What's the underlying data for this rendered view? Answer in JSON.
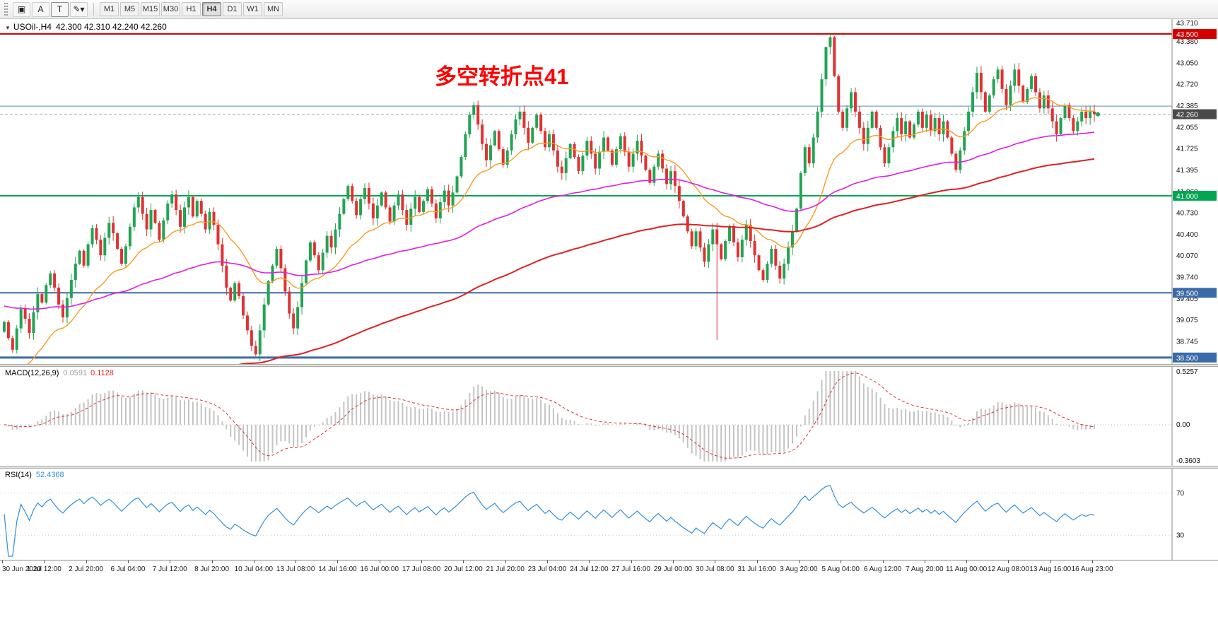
{
  "toolbar": {
    "tools": [
      {
        "name": "chart-window",
        "glyph": "▣"
      },
      {
        "name": "text-label-tool",
        "glyph": "A"
      },
      {
        "name": "text-box-tool",
        "glyph": "T",
        "boxed": true
      },
      {
        "name": "draw-objects-dropdown",
        "glyph": "✎▾"
      }
    ],
    "timeframes": [
      "M1",
      "M5",
      "M15",
      "M30",
      "H1",
      "H4",
      "D1",
      "W1",
      "MN"
    ],
    "active_timeframe": "H4"
  },
  "price_panel": {
    "dropdown_glyph": "▼",
    "title": "USOil-,H4",
    "ohlc": "42.300 42.310 42.240 42.260"
  },
  "annotation": {
    "text": "多空转折点41",
    "color": "#ff0000"
  },
  "chart_data": {
    "type": "candlestick",
    "symbol": "USOil",
    "timeframe": "H4",
    "ohlc_current": {
      "open": 42.3,
      "high": 42.31,
      "low": 42.24,
      "close": 42.26
    },
    "current_price": 42.26,
    "y_range": [
      38.4,
      43.73
    ],
    "up_color": "#21a453",
    "down_color": "#e03131",
    "open_seed": 38.9,
    "closes": [
      39.05,
      38.8,
      38.62,
      38.95,
      39.25,
      39.1,
      38.88,
      39.2,
      39.48,
      39.35,
      39.62,
      39.8,
      39.58,
      39.32,
      39.12,
      39.42,
      39.7,
      39.95,
      40.15,
      39.92,
      40.25,
      40.5,
      40.32,
      40.08,
      40.35,
      40.58,
      40.42,
      40.18,
      39.95,
      40.22,
      40.52,
      40.82,
      40.98,
      40.72,
      40.48,
      40.78,
      40.58,
      40.32,
      40.62,
      40.88,
      41.02,
      40.78,
      40.52,
      40.82,
      40.98,
      40.68,
      40.92,
      40.72,
      40.48,
      40.75,
      40.55,
      40.25,
      39.92,
      39.58,
      39.38,
      39.65,
      39.45,
      39.15,
      38.92,
      38.68,
      38.55,
      38.92,
      39.32,
      39.68,
      39.92,
      40.18,
      39.88,
      39.52,
      39.18,
      38.95,
      39.28,
      39.65,
      40.0,
      40.28,
      40.08,
      39.85,
      40.12,
      40.38,
      40.2,
      40.48,
      40.72,
      40.95,
      41.15,
      40.92,
      40.7,
      40.95,
      41.12,
      40.88,
      40.65,
      40.85,
      41.05,
      40.82,
      40.6,
      40.85,
      41.02,
      40.78,
      40.55,
      40.8,
      40.98,
      40.75,
      40.92,
      41.1,
      40.88,
      40.65,
      40.9,
      41.08,
      40.85,
      41.05,
      41.3,
      41.6,
      41.95,
      42.25,
      42.4,
      42.1,
      41.8,
      41.55,
      41.78,
      42.0,
      41.72,
      41.48,
      41.7,
      41.95,
      42.18,
      42.3,
      42.05,
      41.82,
      42.05,
      42.25,
      42.0,
      41.75,
      41.95,
      41.7,
      41.45,
      41.35,
      41.58,
      41.8,
      41.6,
      41.38,
      41.62,
      41.85,
      41.65,
      41.42,
      41.68,
      41.9,
      41.7,
      41.48,
      41.72,
      41.92,
      41.68,
      41.45,
      41.65,
      41.85,
      41.62,
      41.4,
      41.2,
      41.45,
      41.65,
      41.42,
      41.18,
      41.38,
      41.15,
      40.92,
      40.68,
      40.45,
      40.22,
      40.45,
      40.2,
      39.98,
      40.25,
      40.48,
      40.25,
      40.02,
      40.3,
      40.52,
      40.28,
      40.05,
      40.32,
      40.55,
      40.3,
      40.08,
      39.85,
      39.7,
      39.95,
      40.18,
      39.92,
      39.72,
      39.95,
      40.2,
      40.45,
      40.8,
      41.35,
      41.75,
      41.5,
      41.9,
      42.3,
      42.8,
      43.3,
      43.45,
      42.85,
      42.3,
      42.05,
      42.35,
      42.6,
      42.3,
      42.05,
      41.8,
      42.05,
      42.3,
      42.05,
      41.75,
      41.5,
      41.75,
      42.0,
      42.2,
      41.95,
      42.15,
      41.9,
      42.1,
      42.3,
      42.05,
      42.25,
      42.0,
      42.2,
      41.95,
      42.15,
      41.9,
      41.65,
      41.4,
      41.7,
      42.0,
      42.3,
      42.6,
      42.9,
      42.6,
      42.3,
      42.55,
      42.8,
      42.95,
      42.65,
      42.4,
      42.7,
      42.95,
      42.7,
      42.45,
      42.65,
      42.85,
      42.6,
      42.35,
      42.55,
      42.35,
      42.15,
      41.95,
      42.2,
      42.4,
      42.2,
      42.0,
      42.15,
      42.3,
      42.2,
      42.3,
      42.26
    ],
    "wick_overrides": {
      "60": {
        "low": 38.52
      },
      "112": {
        "high": 42.45
      },
      "170": {
        "low": 38.77
      },
      "196": {
        "high": 43.1
      },
      "197": {
        "high": 43.48
      }
    },
    "moving_averages": [
      {
        "name": "ma-fast-line",
        "period": 21,
        "seed": 37.9,
        "color": "#f79b1e",
        "width": 1.4
      },
      {
        "name": "ma-mid-line",
        "period": 89,
        "seed": 39.3,
        "color": "#e01ee0",
        "width": 1.6
      },
      {
        "name": "ma-slow-line",
        "period": 150,
        "seed": 36.4,
        "color": "#e02020",
        "width": 2
      }
    ],
    "hlines": [
      {
        "price": 43.5,
        "color": "#d40000",
        "width": 2
      },
      {
        "price": 42.385,
        "color": "#5b8ab5",
        "width": 1
      },
      {
        "price": 41.0,
        "color": "#00a651",
        "width": 2
      },
      {
        "price": 39.5,
        "color": "#3a6ba8",
        "width": 2
      },
      {
        "price": 38.5,
        "color": "#3a6ba8",
        "width": 3
      }
    ],
    "price_axis_labels": [
      "43.710",
      "43.380",
      "43.050",
      "42.720",
      "42.385",
      "42.055",
      "41.725",
      "41.395",
      "41.060",
      "40.730",
      "40.400",
      "40.070",
      "39.740",
      "39.405",
      "39.075",
      "38.745",
      "38.415"
    ],
    "price_badges": [
      {
        "value": "43.500",
        "bg": "#d40000"
      },
      {
        "value": "42.260",
        "bg": "#4a4a4a"
      },
      {
        "value": "41.000",
        "bg": "#00a651"
      },
      {
        "value": "39.500",
        "bg": "#3a6ba8"
      },
      {
        "value": "38.500",
        "bg": "#3a6ba8"
      }
    ],
    "x_labels": [
      "30 Jun 2020",
      "1 Jul 12:00",
      "2 Jul 20:00",
      "6 Jul 04:00",
      "7 Jul 12:00",
      "8 Jul 20:00",
      "10 Jul 04:00",
      "13 Jul 08:00",
      "14 Jul 16:00",
      "16 Jul 00:00",
      "17 Jul 08:00",
      "20 Jul 12:00",
      "21 Jul 20:00",
      "23 Jul 04:00",
      "24 Jul 12:00",
      "27 Jul 16:00",
      "29 Jul 00:00",
      "30 Jul 08:00",
      "31 Jul 16:00",
      "3 Aug 20:00",
      "5 Aug 04:00",
      "6 Aug 12:00",
      "7 Aug 20:00",
      "11 Aug 00:00",
      "12 Aug 08:00",
      "13 Aug 16:00",
      "16 Aug 23:00"
    ],
    "indicators": {
      "macd": {
        "title": "MACD(12,26,9)",
        "main_value": "0.0591",
        "signal_value": "0.1128",
        "fast": 12,
        "slow": 26,
        "signal": 9,
        "axis_max": "0.5257",
        "axis_zero": "0.00",
        "axis_min": "-0.3603",
        "hist_color": "#c4c4c4",
        "signal_color": "#e03131"
      },
      "rsi": {
        "title": "RSI(14)",
        "value": "52.4368",
        "period": 14,
        "levels": [
          "70",
          "30"
        ],
        "display_range": [
          10,
          90
        ],
        "line_color": "#2f8fdd"
      }
    }
  }
}
